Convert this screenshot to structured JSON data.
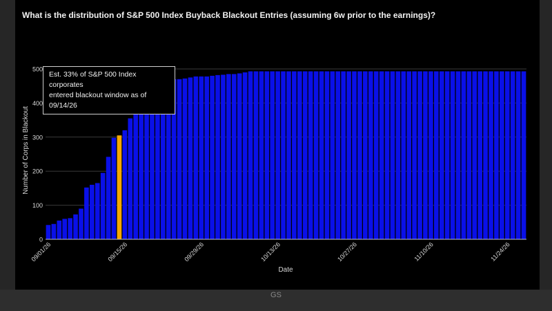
{
  "title": "What is the distribution of S&P 500 Index Buyback Blackout Entries (assuming 6w prior to the earnings)?",
  "annotation": {
    "line1": "Est. 33% of S&P 500 Index corporates",
    "line2": "entered blackout window as of 09/14/26"
  },
  "source": "GS",
  "chart_data": {
    "type": "bar",
    "xlabel": "Date",
    "ylabel": "Number of Corps in Blackout",
    "ylim": [
      0,
      500
    ],
    "yticks": [
      0,
      100,
      200,
      300,
      400,
      500
    ],
    "xtick_labels": [
      {
        "index": 0,
        "label": "09/01/26"
      },
      {
        "index": 14,
        "label": "09/15/26"
      },
      {
        "index": 28,
        "label": "09/29/26"
      },
      {
        "index": 42,
        "label": "10/13/26"
      },
      {
        "index": 56,
        "label": "10/27/26"
      },
      {
        "index": 70,
        "label": "11/10/26"
      },
      {
        "index": 84,
        "label": "11/24/26"
      }
    ],
    "grid": true,
    "bar_color": "#0a10e8",
    "highlight_color": "#f5a800",
    "highlight_index": 13,
    "values": [
      42,
      45,
      55,
      60,
      62,
      73,
      90,
      152,
      160,
      165,
      195,
      242,
      298,
      305,
      320,
      355,
      412,
      418,
      425,
      440,
      455,
      465,
      468,
      470,
      470,
      472,
      475,
      478,
      478,
      478,
      480,
      482,
      483,
      485,
      485,
      487,
      490,
      493,
      493,
      493,
      493,
      493,
      493,
      493,
      493,
      493,
      493,
      493,
      493,
      493,
      493,
      493,
      493,
      493,
      493,
      493,
      493,
      493,
      493,
      493,
      493,
      493,
      493,
      493,
      493,
      493,
      493,
      493,
      493,
      493,
      493,
      493,
      493,
      493,
      493,
      493,
      493,
      493,
      493,
      493,
      493,
      493,
      493,
      493,
      493,
      493,
      493,
      493
    ]
  }
}
